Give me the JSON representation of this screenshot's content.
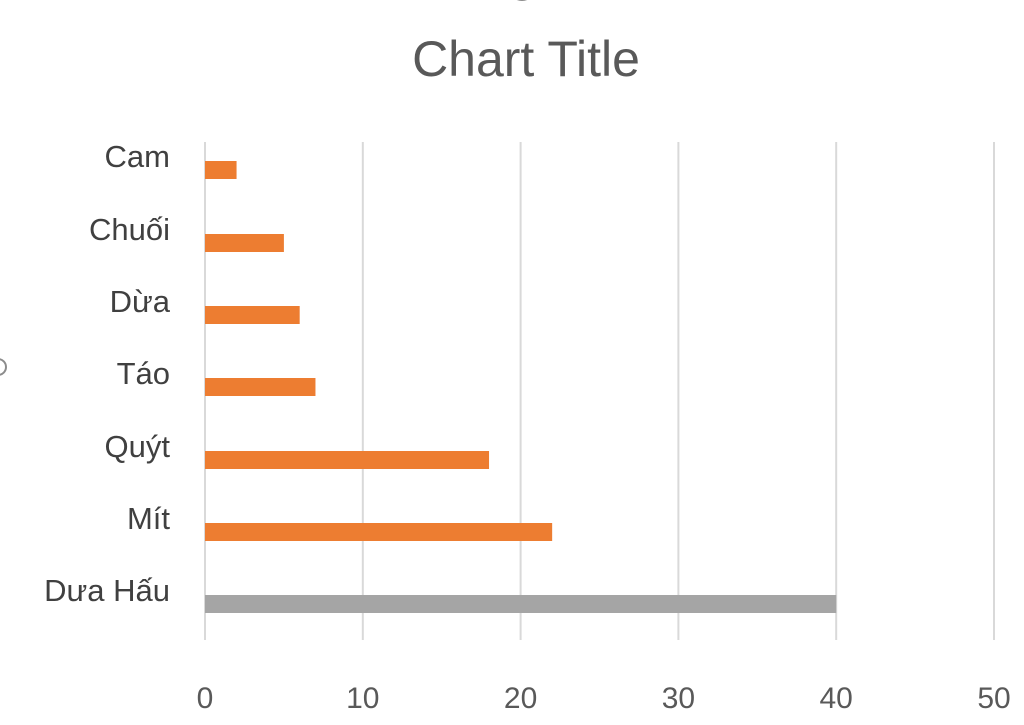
{
  "chart_data": {
    "type": "bar",
    "orientation": "horizontal",
    "title": "Chart Title",
    "xlabel": "",
    "ylabel": "",
    "categories": [
      "Dưa Hấu",
      "Mít",
      "Quýt",
      "Táo",
      "Dừa",
      "Chuối",
      "Cam"
    ],
    "values": [
      40,
      22,
      18,
      7,
      6,
      5,
      2
    ],
    "bar_colors": [
      "#a5a5a5",
      "#ed7d31",
      "#ed7d31",
      "#ed7d31",
      "#ed7d31",
      "#ed7d31",
      "#ed7d31"
    ],
    "xlim": [
      0,
      50
    ],
    "xticks": [
      0,
      10,
      20,
      30,
      40,
      50
    ],
    "xtick_labels": [
      "0",
      "10",
      "20",
      "30",
      "40",
      "50"
    ],
    "grid": "vertical",
    "legend": "none"
  },
  "colors": {
    "highlight_bar": "#a5a5a5",
    "bar": "#ed7d31",
    "grid": "#d9d9d9",
    "title": "#595959"
  }
}
